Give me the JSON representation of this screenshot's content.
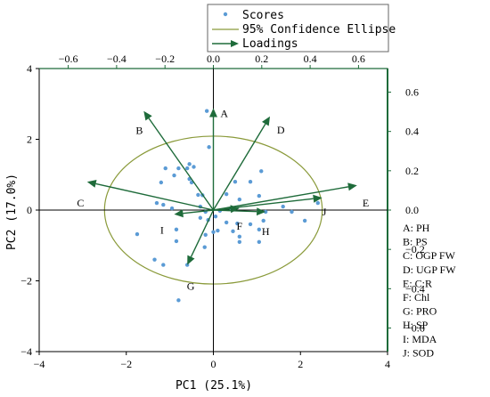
{
  "chart_data": {
    "type": "scatter",
    "subtype": "pca-biplot",
    "xlabel": "PC1 (25.1%)",
    "ylabel": "PC2 (17.0%)",
    "xlim": [
      -4,
      4
    ],
    "ylim": [
      -4,
      4
    ],
    "x_ticks": [
      "−4",
      "−2",
      "0",
      "2",
      "4"
    ],
    "y_ticks": [
      "−4",
      "−2",
      "0",
      "2",
      "4"
    ],
    "top_axis": {
      "lim": [
        -0.72,
        0.72
      ],
      "ticks": [
        "−0.6",
        "−0.4",
        "−0.2",
        "0.0",
        "0.2",
        "0.4",
        "0.6"
      ]
    },
    "right_axis": {
      "lim": [
        -0.72,
        0.72
      ],
      "ticks": [
        "0.6",
        "0.4",
        "0.2",
        "0.0",
        "−0.2",
        "−0.4",
        "−0.6"
      ]
    },
    "legend": {
      "placement": "top-center",
      "entries": [
        "Scores",
        "95% Confidence Ellipse",
        "Loadings"
      ]
    },
    "colors": {
      "scores": "#5b9bd5",
      "ellipse": "#8a9a3a",
      "loadings": "#1e6b3a",
      "axes": "#1e6b3a"
    },
    "ellipse": {
      "center": [
        0,
        0
      ],
      "rx": 2.5,
      "ry": 2.09
    },
    "scores": [
      {
        "x": -0.15,
        "y": 2.8
      },
      {
        "x": -0.1,
        "y": 1.78
      },
      {
        "x": -1.1,
        "y": 1.18
      },
      {
        "x": -0.6,
        "y": 1.18
      },
      {
        "x": -0.8,
        "y": 1.18
      },
      {
        "x": -0.55,
        "y": 1.3
      },
      {
        "x": -0.45,
        "y": 1.22
      },
      {
        "x": -0.9,
        "y": 0.98
      },
      {
        "x": -0.55,
        "y": 0.88
      },
      {
        "x": -0.5,
        "y": 0.78
      },
      {
        "x": -1.2,
        "y": 0.78
      },
      {
        "x": -0.35,
        "y": 0.43
      },
      {
        "x": -0.25,
        "y": 0.42
      },
      {
        "x": -0.3,
        "y": 0.1
      },
      {
        "x": 1.1,
        "y": 1.1
      },
      {
        "x": 0.5,
        "y": 0.8
      },
      {
        "x": 0.85,
        "y": 0.8
      },
      {
        "x": 0.3,
        "y": 0.45
      },
      {
        "x": 1.05,
        "y": 0.4
      },
      {
        "x": 0.6,
        "y": 0.3
      },
      {
        "x": -1.3,
        "y": 0.2
      },
      {
        "x": -1.15,
        "y": 0.15
      },
      {
        "x": -0.95,
        "y": 0.05
      },
      {
        "x": 0.15,
        "y": -0.02
      },
      {
        "x": -0.18,
        "y": -0.05
      },
      {
        "x": 0.05,
        "y": -0.18
      },
      {
        "x": -0.3,
        "y": -0.22
      },
      {
        "x": -0.12,
        "y": -0.28
      },
      {
        "x": 0.4,
        "y": 0.05
      },
      {
        "x": 1.6,
        "y": 0.1
      },
      {
        "x": 1.8,
        "y": -0.05
      },
      {
        "x": 2.4,
        "y": 0.2
      },
      {
        "x": 1.2,
        "y": -0.05
      },
      {
        "x": 1.15,
        "y": -0.3
      },
      {
        "x": 2.1,
        "y": -0.3
      },
      {
        "x": 0.55,
        "y": -0.38
      },
      {
        "x": 0.85,
        "y": -0.4
      },
      {
        "x": 0.3,
        "y": -0.35
      },
      {
        "x": 0.45,
        "y": -0.6
      },
      {
        "x": 1.05,
        "y": -0.55
      },
      {
        "x": 0.6,
        "y": -0.75
      },
      {
        "x": 0.1,
        "y": -0.58
      },
      {
        "x": 0.0,
        "y": -0.62
      },
      {
        "x": -0.18,
        "y": -0.7
      },
      {
        "x": -0.2,
        "y": -1.05
      },
      {
        "x": -0.85,
        "y": -0.55
      },
      {
        "x": -0.85,
        "y": -0.88
      },
      {
        "x": -1.75,
        "y": -0.68
      },
      {
        "x": 1.05,
        "y": -0.9
      },
      {
        "x": 0.6,
        "y": -0.9
      },
      {
        "x": -1.35,
        "y": -1.4
      },
      {
        "x": -1.15,
        "y": -1.55
      },
      {
        "x": -0.6,
        "y": -1.55
      },
      {
        "x": -0.8,
        "y": -2.55
      }
    ],
    "loadings": [
      {
        "label": "A",
        "x": 0.0,
        "y": 2.88
      },
      {
        "label": "B",
        "x": -1.6,
        "y": 2.8
      },
      {
        "label": "C",
        "x": -2.9,
        "y": 0.8
      },
      {
        "label": "D",
        "x": 1.3,
        "y": 2.65
      },
      {
        "label": "E",
        "x": 3.3,
        "y": 0.7
      },
      {
        "label": "F",
        "x": 0.6,
        "y": 0.05
      },
      {
        "label": "G",
        "x": -0.6,
        "y": -1.55
      },
      {
        "label": "H",
        "x": 1.2,
        "y": -0.05
      },
      {
        "label": "I",
        "x": -0.9,
        "y": -0.12
      },
      {
        "label": "J",
        "x": 2.5,
        "y": 0.35
      }
    ],
    "loading_label_offsets": {
      "A": [
        0.25,
        -0.15
      ],
      "B": [
        -0.1,
        -0.55
      ],
      "C": [
        -0.15,
        -0.6
      ],
      "D": [
        0.25,
        -0.38
      ],
      "E": [
        0.2,
        -0.5
      ],
      "F": [
        0.0,
        -0.5
      ],
      "G": [
        0.08,
        -0.6
      ],
      "H": [
        0.0,
        -0.55
      ],
      "I": [
        -0.28,
        -0.45
      ],
      "J": [
        0.05,
        -0.4
      ]
    },
    "variable_key": [
      "A: PH",
      "B: PS",
      "C: OGP FW",
      "D: UGP FW",
      "E: C:R",
      "F: Chl",
      "G: PRO",
      "H: SP",
      "I: MDA",
      "J: SOD"
    ]
  }
}
